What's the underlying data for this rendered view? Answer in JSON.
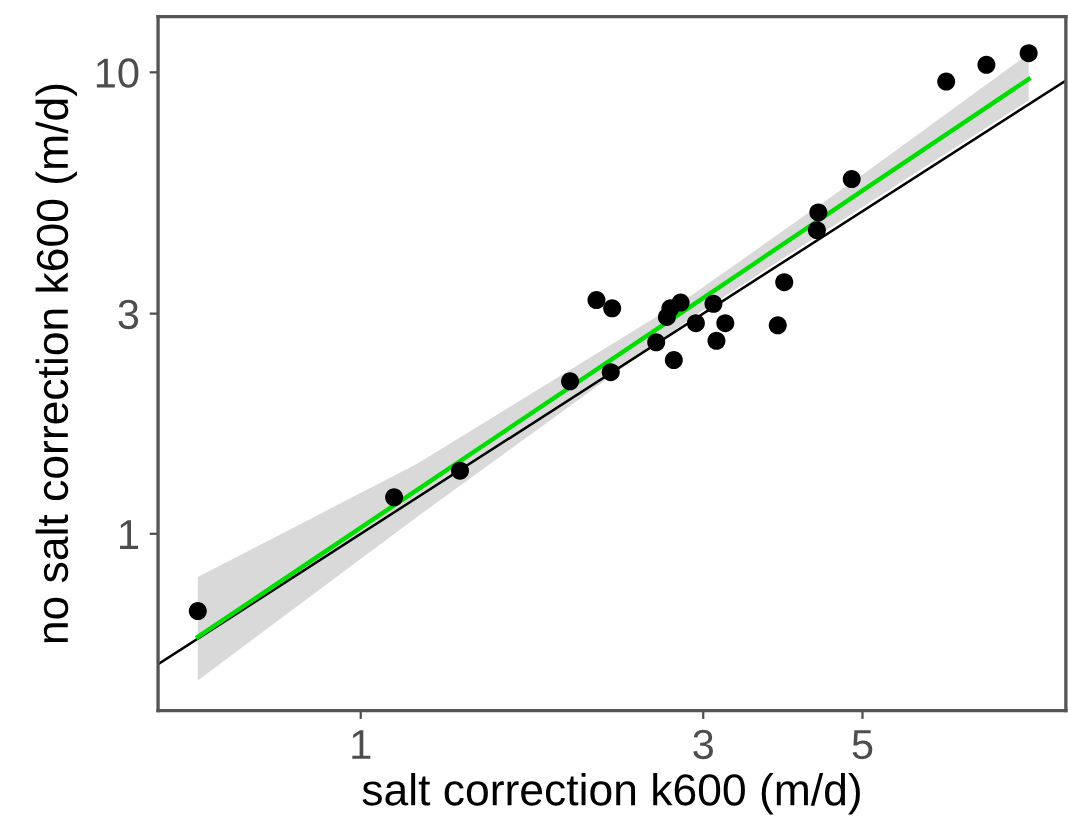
{
  "chart_data": {
    "type": "scatter",
    "xlabel": "salt correction k600 (m/d)",
    "ylabel": "no salt correction k600 (m/d)",
    "log": "xy",
    "grid": false,
    "xlim": [
      0.522,
      9.6
    ],
    "ylim": [
      0.414,
      13.2
    ],
    "xticks": [
      1,
      3,
      5
    ],
    "yticks": [
      1,
      3,
      10
    ],
    "series": [
      {
        "type": "line",
        "color": "#000000",
        "x": [
          0.522,
          9.6
        ],
        "values": [
          0.522,
          9.6
        ]
      },
      {
        "type": "line",
        "color": "#00dd00",
        "x": [
          0.593,
          1.2,
          2.9,
          5,
          8.52
        ],
        "values": [
          0.598,
          1.247,
          3.13,
          5.54,
          9.67
        ],
        "lower": [
          0.481,
          1.09,
          2.95,
          5.11,
          8.69
        ],
        "upper": [
          0.806,
          1.42,
          3.3,
          6.0,
          10.97
        ]
      },
      {
        "color": "#000000",
        "marker": "circle",
        "x": [
          0.593,
          1.113,
          1.375,
          1.957,
          2.23,
          2.13,
          2.24,
          2.58,
          2.73,
          2.67,
          2.7,
          2.79,
          2.93,
          3.1,
          3.22,
          3.13,
          3.81,
          3.89,
          4.32,
          4.34,
          4.83,
          6.54,
          7.44,
          8.52
        ],
        "values": [
          0.68,
          1.2,
          1.37,
          2.14,
          2.24,
          3.21,
          3.08,
          2.6,
          2.38,
          2.95,
          3.08,
          3.17,
          2.86,
          3.15,
          2.86,
          2.62,
          2.83,
          3.51,
          4.55,
          4.97,
          5.87,
          9.55,
          10.38,
          11.0
        ]
      }
    ]
  }
}
